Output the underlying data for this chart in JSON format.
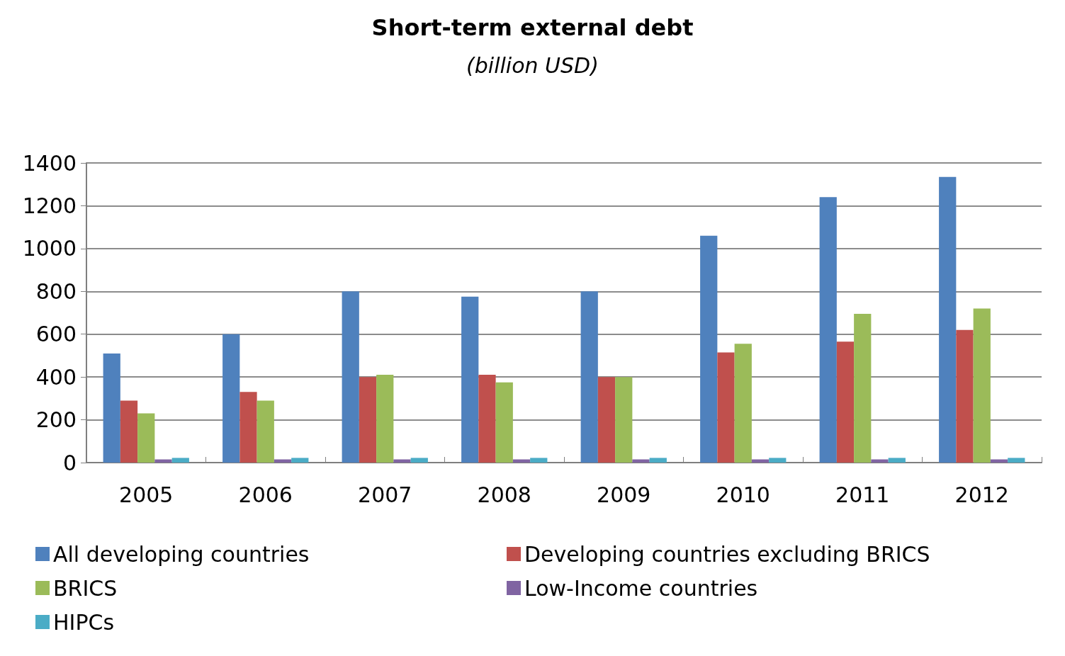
{
  "chart_data": {
    "type": "bar",
    "title": "Short-term external debt",
    "subtitle": "(billion USD)",
    "categories": [
      "2005",
      "2006",
      "2007",
      "2008",
      "2009",
      "2010",
      "2011",
      "2012"
    ],
    "series": [
      {
        "name": "All developing countries",
        "color": "#4f81bd",
        "values": [
          510,
          600,
          800,
          775,
          800,
          1060,
          1240,
          1335
        ]
      },
      {
        "name": "Developing countries excluding BRICS",
        "color": "#c0504d",
        "values": [
          290,
          330,
          400,
          410,
          400,
          515,
          565,
          620
        ]
      },
      {
        "name": "BRICS",
        "color": "#9bbb59",
        "values": [
          230,
          290,
          410,
          375,
          400,
          555,
          695,
          720
        ]
      },
      {
        "name": "Low-Income countries",
        "color": "#8064a2",
        "values": [
          15,
          15,
          15,
          15,
          15,
          15,
          15,
          15
        ]
      },
      {
        "name": "HIPCs",
        "color": "#4bacc6",
        "values": [
          22,
          22,
          22,
          22,
          22,
          22,
          22,
          22
        ]
      }
    ],
    "ylim": [
      0,
      1400
    ],
    "yticks": [
      0,
      200,
      400,
      600,
      800,
      1000,
      1200,
      1400
    ],
    "grid": "y",
    "legend": "bottom"
  }
}
